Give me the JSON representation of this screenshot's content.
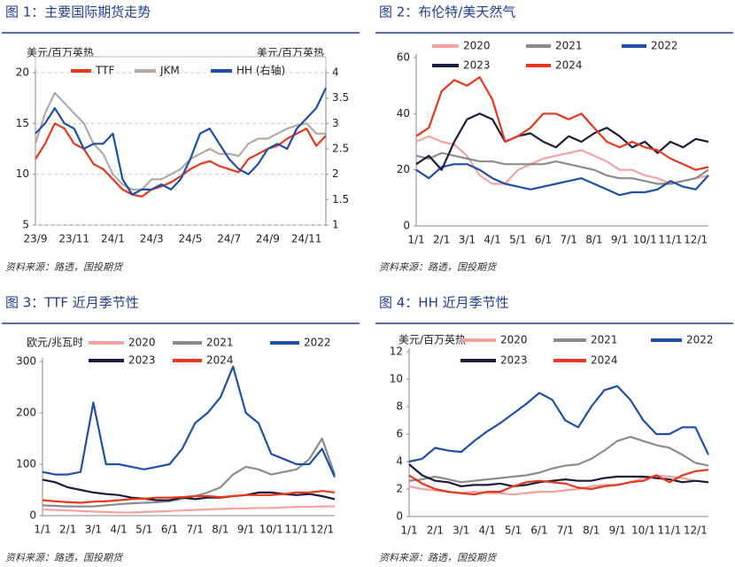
{
  "chart_data": [
    {
      "type": "line",
      "title": "图 1：主要国际期货走势",
      "source": "资料来源：路透，国投期货",
      "y_label": "美元/百万英热",
      "y2_label": "美元/百万英热",
      "categories": [
        "23/9",
        null,
        null,
        null,
        "23/11",
        null,
        null,
        null,
        "24/1",
        null,
        null,
        null,
        "24/3",
        null,
        null,
        null,
        "24/5",
        null,
        null,
        null,
        "24/7",
        null,
        null,
        null,
        "24/9",
        null,
        null,
        null,
        "24/11",
        null,
        null
      ],
      "series": [
        {
          "name": "TTF",
          "color": "#e8371c",
          "values": [
            11.5,
            13,
            15,
            14.5,
            13,
            12.5,
            11,
            10.5,
            9.5,
            8.5,
            8,
            7.8,
            8.5,
            8.8,
            9.2,
            9.8,
            10.5,
            11,
            11.3,
            10.8,
            10.5,
            10.2,
            11.5,
            12,
            12.5,
            12.8,
            13.5,
            14,
            14.5,
            12.8,
            13.8
          ]
        },
        {
          "name": "JKM",
          "color": "#b3aaa2",
          "values": [
            13,
            16,
            18,
            17,
            16,
            15,
            13,
            12,
            10,
            9,
            8.5,
            8.5,
            9.5,
            9.5,
            10,
            10.5,
            11.5,
            12,
            12.5,
            12,
            12,
            11.8,
            13,
            13.5,
            13.5,
            14,
            14.5,
            14.8,
            15,
            14,
            14
          ]
        },
        {
          "name": "HH (右轴)",
          "color": "#1f4fa8",
          "axis": "y2",
          "values": [
            2.8,
            3.0,
            3.3,
            3.0,
            2.9,
            2.5,
            2.6,
            2.6,
            2.8,
            1.9,
            1.6,
            1.7,
            1.7,
            1.8,
            1.7,
            1.9,
            2.3,
            2.8,
            2.9,
            2.6,
            2.3,
            2.1,
            2.0,
            2.2,
            2.5,
            2.6,
            2.5,
            2.9,
            3.1,
            3.3,
            3.7
          ]
        }
      ],
      "ylim": [
        5,
        20
      ],
      "yticks": [
        5,
        10,
        15,
        20
      ],
      "y2lim": [
        1,
        4
      ],
      "y2ticks": [
        1,
        1.5,
        2,
        2.5,
        3,
        3.5,
        4
      ],
      "grid": true
    },
    {
      "type": "line",
      "title": "图 2：布伦特/美天然气",
      "source": "资料来源：路透，国投期货",
      "categories": [
        "1/1",
        null,
        "2/1",
        null,
        "3/1",
        null,
        "4/1",
        null,
        "5/1",
        null,
        "6/1",
        null,
        "7/1",
        null,
        "8/1",
        null,
        "9/1",
        null,
        "10/1",
        null,
        "11/1",
        null,
        "12/1",
        null
      ],
      "series": [
        {
          "name": "2020",
          "color": "#f4a3a0",
          "values": [
            30,
            32,
            30,
            29,
            25,
            18,
            15,
            15,
            20,
            22,
            24,
            25,
            26,
            27,
            25,
            23,
            20,
            20,
            18,
            17,
            15,
            16,
            17,
            18
          ]
        },
        {
          "name": "2021",
          "color": "#8c8c8c",
          "values": [
            25,
            24,
            26,
            25,
            24,
            23,
            23,
            22,
            22,
            22,
            22,
            23,
            22,
            21,
            20,
            18,
            17,
            17,
            16,
            15,
            15,
            16,
            17,
            20
          ]
        },
        {
          "name": "2022",
          "color": "#1f4fa8",
          "values": [
            20,
            17,
            21,
            22,
            22,
            20,
            17,
            15,
            14,
            13,
            14,
            15,
            16,
            17,
            15,
            13,
            11,
            12,
            12,
            13,
            16,
            14,
            13,
            18
          ]
        },
        {
          "name": "2023",
          "color": "#1c1c3c",
          "values": [
            22,
            25,
            20,
            30,
            38,
            40,
            38,
            30,
            32,
            33,
            30,
            28,
            32,
            30,
            33,
            35,
            32,
            28,
            30,
            26,
            30,
            28,
            31,
            30
          ]
        },
        {
          "name": "2024",
          "color": "#e8371c",
          "values": [
            32,
            35,
            48,
            52,
            50,
            53,
            45,
            30,
            32,
            35,
            40,
            40,
            38,
            40,
            35,
            30,
            28,
            30,
            28,
            27,
            24,
            22,
            20,
            21
          ]
        }
      ],
      "ylim": [
        0,
        60
      ],
      "yticks": [
        0,
        20,
        40,
        60
      ],
      "grid": false
    },
    {
      "type": "line",
      "title": "图 3：TTF 近月季节性",
      "source": "资料来源：路透，国投期货",
      "y_label": "欧元/兆瓦时",
      "categories": [
        "1/1",
        null,
        "2/1",
        null,
        "3/1",
        null,
        "4/1",
        null,
        "5/1",
        null,
        "6/1",
        null,
        "7/1",
        null,
        "8/1",
        null,
        "9/1",
        null,
        "10/1",
        null,
        "11/1",
        null,
        "12/1",
        null
      ],
      "series": [
        {
          "name": "2020",
          "color": "#f4a3a0",
          "values": [
            12,
            11,
            10,
            9,
            8,
            7,
            6,
            6,
            7,
            8,
            9,
            10,
            11,
            12,
            13,
            14,
            14,
            15,
            15,
            16,
            17,
            17,
            18,
            18
          ]
        },
        {
          "name": "2021",
          "color": "#8c8c8c",
          "values": [
            20,
            19,
            18,
            18,
            18,
            20,
            22,
            24,
            25,
            26,
            28,
            33,
            38,
            45,
            55,
            80,
            95,
            90,
            80,
            85,
            90,
            110,
            150,
            80
          ]
        },
        {
          "name": "2022",
          "color": "#1f4fa8",
          "values": [
            85,
            80,
            80,
            85,
            220,
            100,
            100,
            95,
            90,
            95,
            100,
            130,
            180,
            200,
            230,
            290,
            200,
            180,
            120,
            110,
            100,
            100,
            130,
            75
          ]
        },
        {
          "name": "2023",
          "color": "#1c1c3c",
          "values": [
            70,
            65,
            55,
            50,
            45,
            42,
            40,
            35,
            33,
            30,
            30,
            35,
            32,
            35,
            35,
            38,
            40,
            45,
            45,
            42,
            40,
            42,
            38,
            32
          ]
        },
        {
          "name": "2024",
          "color": "#e8371c",
          "values": [
            30,
            28,
            26,
            25,
            27,
            28,
            30,
            32,
            33,
            35,
            35,
            36,
            38,
            38,
            36,
            38,
            40,
            40,
            40,
            42,
            45,
            45,
            48,
            45
          ]
        }
      ],
      "ylim": [
        0,
        300
      ],
      "yticks": [
        0,
        100,
        200,
        300
      ],
      "grid": false
    },
    {
      "type": "line",
      "title": "图 4：HH 近月季节性",
      "source": "资料来源：路透，国投期货",
      "y_label": "美元/百万英热",
      "categories": [
        "1/1",
        null,
        "2/1",
        null,
        "3/1",
        null,
        "4/1",
        null,
        "5/1",
        null,
        "6/1",
        null,
        "7/1",
        null,
        "8/1",
        null,
        "9/1",
        null,
        "10/1",
        null,
        "11/1",
        null,
        "12/1",
        null
      ],
      "series": [
        {
          "name": "2020",
          "color": "#f4a3a0",
          "values": [
            2.2,
            2.0,
            1.9,
            1.8,
            1.7,
            1.8,
            1.7,
            1.7,
            1.6,
            1.7,
            1.8,
            1.8,
            1.9,
            2.0,
            2.2,
            2.3,
            2.3,
            2.5,
            2.8,
            3.0,
            2.9,
            2.8,
            2.6,
            2.5
          ]
        },
        {
          "name": "2021",
          "color": "#8c8c8c",
          "values": [
            2.6,
            2.7,
            2.9,
            2.7,
            2.5,
            2.6,
            2.7,
            2.8,
            2.9,
            3.0,
            3.2,
            3.5,
            3.7,
            3.8,
            4.2,
            4.8,
            5.5,
            5.8,
            5.5,
            5.2,
            5.0,
            4.5,
            3.9,
            3.7
          ]
        },
        {
          "name": "2022",
          "color": "#1f4fa8",
          "values": [
            4.0,
            4.2,
            5.0,
            4.8,
            4.7,
            5.5,
            6.2,
            6.8,
            7.5,
            8.2,
            9.0,
            8.5,
            7.0,
            6.5,
            8.0,
            9.2,
            9.5,
            8.5,
            7.0,
            6.0,
            6.0,
            6.5,
            6.5,
            4.5
          ]
        },
        {
          "name": "2023",
          "color": "#1c1c3c",
          "values": [
            3.8,
            3.0,
            2.6,
            2.5,
            2.2,
            2.3,
            2.3,
            2.4,
            2.2,
            2.3,
            2.5,
            2.6,
            2.7,
            2.6,
            2.6,
            2.8,
            2.9,
            2.9,
            2.9,
            2.8,
            2.7,
            2.5,
            2.6,
            2.5
          ]
        },
        {
          "name": "2024",
          "color": "#e8371c",
          "values": [
            3.0,
            2.4,
            2.0,
            1.8,
            1.7,
            1.6,
            1.8,
            1.8,
            2.2,
            2.5,
            2.6,
            2.5,
            2.4,
            2.1,
            2.0,
            2.2,
            2.3,
            2.5,
            2.6,
            3.0,
            2.5,
            3.0,
            3.3,
            3.4
          ]
        }
      ],
      "ylim": [
        0,
        12
      ],
      "yticks": [
        0,
        2,
        4,
        6,
        8,
        10,
        12
      ],
      "grid": false
    }
  ]
}
